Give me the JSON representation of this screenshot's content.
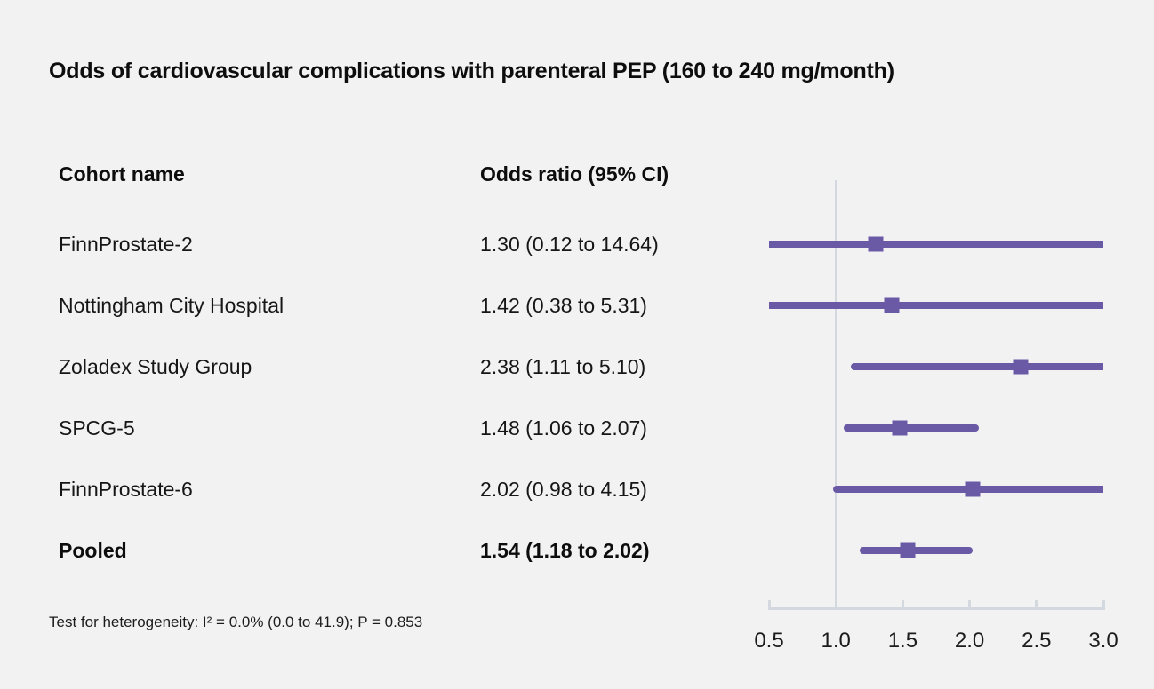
{
  "title": "Odds of cardiovascular complications with parenteral PEP (160 to 240 mg/month)",
  "columns": {
    "cohort": "Cohort name",
    "odds_ratio": "Odds ratio (95% CI)"
  },
  "footnote": "Test for heterogeneity: I² = 0.0% (0.0 to 41.9); P = 0.853",
  "colors": {
    "marker": "#6a59a5",
    "axis": "#d4d8df",
    "background": "#f2f2f2"
  },
  "chart_data": {
    "type": "forest",
    "title": "Odds of cardiovascular complications with parenteral PEP (160 to 240 mg/month)",
    "xlabel": "",
    "axis_range": [
      0.5,
      3.0
    ],
    "reference_line": 1.0,
    "grid": false,
    "ticks": [
      {
        "label": "0.5",
        "value": 0.5
      },
      {
        "label": "1.0",
        "value": 1.0
      },
      {
        "label": "1.5",
        "value": 1.5
      },
      {
        "label": "2.0",
        "value": 2.0
      },
      {
        "label": "2.5",
        "value": 2.5
      },
      {
        "label": "3.0",
        "value": 3.0
      }
    ],
    "rows": [
      {
        "cohort": "FinnProstate-2",
        "label": "1.30 (0.12 to 14.64)",
        "or": 1.3,
        "ci_low": 0.12,
        "ci_high": 14.64,
        "pooled": false
      },
      {
        "cohort": "Nottingham City Hospital",
        "label": "1.42 (0.38 to 5.31)",
        "or": 1.42,
        "ci_low": 0.38,
        "ci_high": 5.31,
        "pooled": false
      },
      {
        "cohort": "Zoladex Study Group",
        "label": "2.38 (1.11 to 5.10)",
        "or": 2.38,
        "ci_low": 1.11,
        "ci_high": 5.1,
        "pooled": false
      },
      {
        "cohort": "SPCG-5",
        "label": "1.48 (1.06 to 2.07)",
        "or": 1.48,
        "ci_low": 1.06,
        "ci_high": 2.07,
        "pooled": false
      },
      {
        "cohort": "FinnProstate-6",
        "label": "2.02 (0.98 to 4.15)",
        "or": 2.02,
        "ci_low": 0.98,
        "ci_high": 4.15,
        "pooled": false
      },
      {
        "cohort": "Pooled",
        "label": "1.54 (1.18 to 2.02)",
        "or": 1.54,
        "ci_low": 1.18,
        "ci_high": 2.02,
        "pooled": true
      }
    ]
  }
}
